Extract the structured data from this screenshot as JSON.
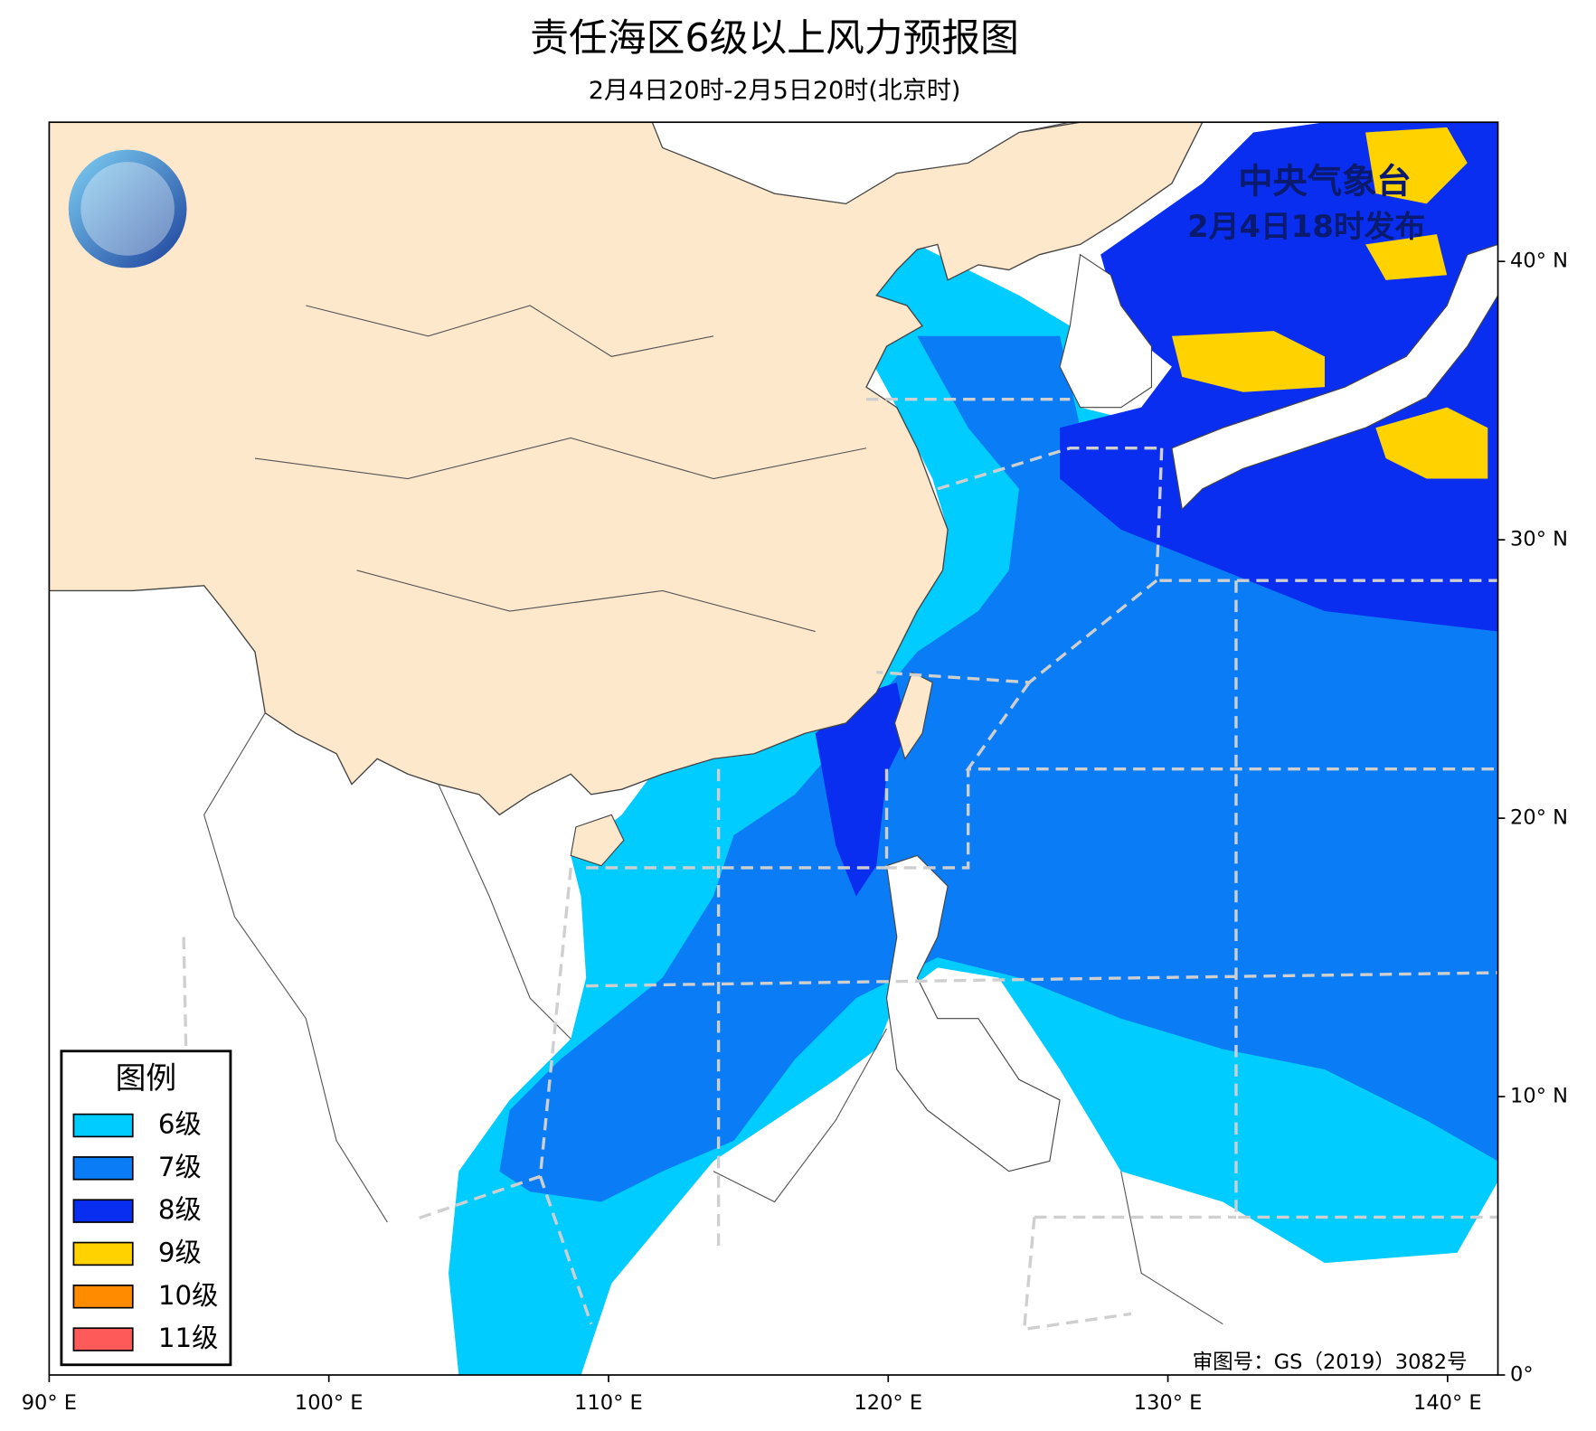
{
  "header": {
    "title": "责任海区6级以上风力预报图",
    "subtitle": "2月4日20时-2月5日20时(北京时)"
  },
  "map": {
    "xlim": [
      90,
      141.8
    ],
    "ylim": [
      0,
      45
    ],
    "xticks": [
      {
        "value": 90,
        "label": "90° E"
      },
      {
        "value": 100,
        "label": "100° E"
      },
      {
        "value": 110,
        "label": "110° E"
      },
      {
        "value": 120,
        "label": "120° E"
      },
      {
        "value": 130,
        "label": "130° E"
      },
      {
        "value": 140,
        "label": "140° E"
      }
    ],
    "yticks": [
      {
        "value": 0,
        "label": "0°"
      },
      {
        "value": 10,
        "label": "10° N"
      },
      {
        "value": 20,
        "label": "20° N"
      },
      {
        "value": 30,
        "label": "30° N"
      },
      {
        "value": 40,
        "label": "40° N"
      }
    ]
  },
  "issuer": {
    "name": "中央气象台",
    "time": "2月4日18时发布"
  },
  "approval": "审图号：GS（2019）3082号",
  "legend": {
    "title": "图例",
    "items": [
      {
        "label": "6级",
        "color": "#00ccff"
      },
      {
        "label": "7级",
        "color": "#0a7cf5"
      },
      {
        "label": "8级",
        "color": "#0a2ef0"
      },
      {
        "label": "9级",
        "color": "#ffd200"
      },
      {
        "label": "10级",
        "color": "#ff8c00"
      },
      {
        "label": "11级",
        "color": "#ff5a5a"
      }
    ]
  }
}
